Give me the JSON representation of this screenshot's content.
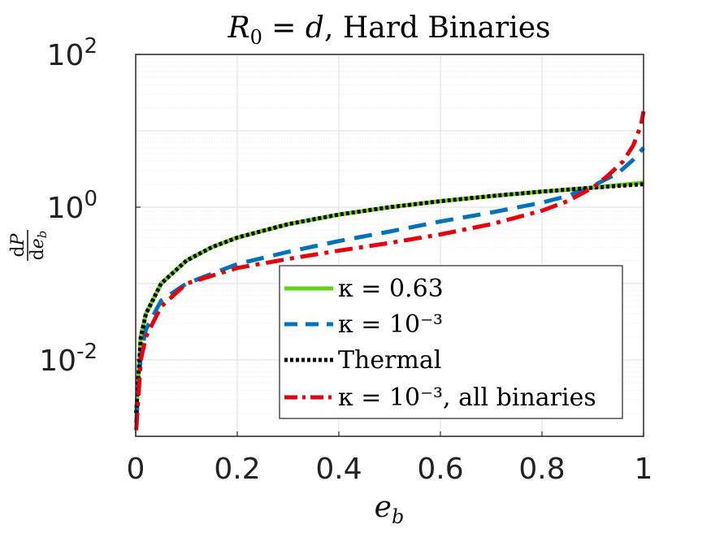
{
  "chart_data": {
    "type": "line",
    "title": "R₀ = d, Hard Binaries",
    "xlabel": "e_b",
    "ylabel": "dP/de_b",
    "xlim": [
      0,
      1
    ],
    "ylim": [
      0.001,
      100
    ],
    "yscale": "log",
    "grid": true,
    "minor_grid": true,
    "legend_position": "lower-right",
    "x_ticks": [
      "0",
      "0.2",
      "0.4",
      "0.6",
      "0.8",
      "1"
    ],
    "y_ticks": [
      {
        "base": "10",
        "exp": "2",
        "value": 100
      },
      {
        "base": "10",
        "exp": "0",
        "value": 1
      },
      {
        "base": "10",
        "exp": "-2",
        "value": 0.01
      }
    ],
    "series": [
      {
        "name": "κ = 0.63",
        "color": "#66d11a",
        "style": "solid",
        "x": [
          0.001,
          0.01,
          0.02,
          0.05,
          0.1,
          0.15,
          0.2,
          0.3,
          0.4,
          0.5,
          0.6,
          0.7,
          0.8,
          0.9,
          1.0
        ],
        "y": [
          0.002,
          0.02,
          0.04,
          0.1,
          0.2,
          0.3,
          0.4,
          0.6,
          0.8,
          1.0,
          1.2,
          1.4,
          1.6,
          1.8,
          2.1
        ]
      },
      {
        "name": "κ = 10⁻³",
        "color": "#0072bd",
        "style": "dashed",
        "x": [
          0.001,
          0.01,
          0.02,
          0.05,
          0.1,
          0.2,
          0.3,
          0.4,
          0.5,
          0.6,
          0.7,
          0.8,
          0.85,
          0.9,
          0.95,
          0.98,
          1.0
        ],
        "y": [
          0.0015,
          0.012,
          0.025,
          0.06,
          0.1,
          0.18,
          0.26,
          0.36,
          0.48,
          0.65,
          0.85,
          1.15,
          1.4,
          1.9,
          2.8,
          4.2,
          6.0
        ]
      },
      {
        "name": "Thermal",
        "color": "#000000",
        "style": "dotted",
        "x": [
          0.001,
          0.01,
          0.02,
          0.05,
          0.1,
          0.15,
          0.2,
          0.3,
          0.4,
          0.5,
          0.6,
          0.7,
          0.8,
          0.9,
          1.0
        ],
        "y": [
          0.002,
          0.02,
          0.04,
          0.1,
          0.2,
          0.3,
          0.4,
          0.6,
          0.8,
          1.0,
          1.2,
          1.4,
          1.6,
          1.8,
          2.0
        ]
      },
      {
        "name": "κ = 10⁻³, all binaries",
        "color": "#e8000b",
        "style": "dashdot",
        "x": [
          0.001,
          0.01,
          0.02,
          0.05,
          0.1,
          0.2,
          0.3,
          0.4,
          0.5,
          0.6,
          0.7,
          0.8,
          0.85,
          0.9,
          0.93,
          0.96,
          0.98,
          0.995,
          1.0
        ],
        "y": [
          0.0012,
          0.01,
          0.02,
          0.05,
          0.1,
          0.16,
          0.21,
          0.27,
          0.34,
          0.44,
          0.6,
          0.9,
          1.2,
          1.8,
          2.6,
          4.0,
          6.5,
          12.0,
          18.0
        ]
      }
    ]
  }
}
